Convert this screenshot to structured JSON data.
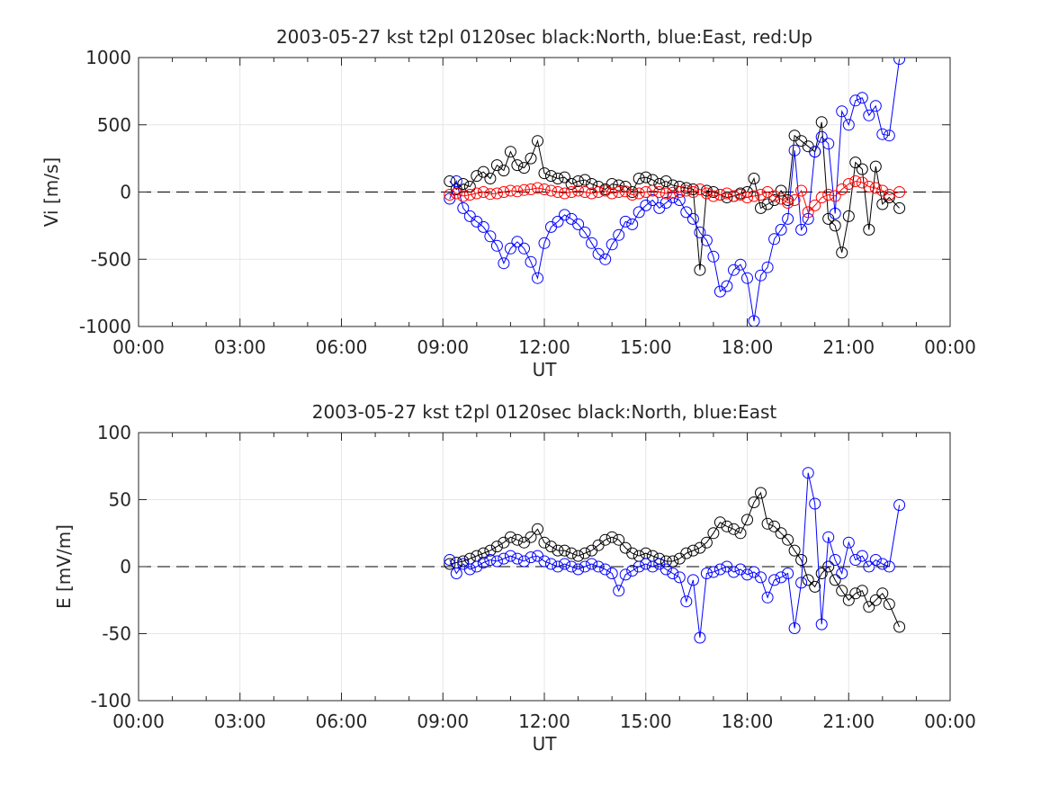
{
  "chart_data": [
    {
      "type": "scatter",
      "title": "2003-05-27 kst t2pl 0120sec black:North, blue:East, red:Up",
      "xlabel": "UT",
      "ylabel": "Vi [m/s]",
      "xlim": [
        0,
        24
      ],
      "ylim": [
        -1000,
        1000
      ],
      "x_ticks": [
        0,
        3,
        6,
        9,
        12,
        15,
        18,
        21,
        24
      ],
      "x_tick_labels": [
        "00:00",
        "03:00",
        "06:00",
        "09:00",
        "12:00",
        "15:00",
        "18:00",
        "21:00",
        "00:00"
      ],
      "y_ticks": [
        1000,
        500,
        0,
        -500,
        -1000
      ],
      "y_tick_labels": [
        "1000",
        "500",
        "0",
        "-500",
        "-1000"
      ],
      "grid": true,
      "zero_line": "dashed",
      "series": [
        {
          "name": "North",
          "color": "#000000",
          "marker": "circle",
          "x": [
            9.2,
            9.4,
            9.6,
            9.8,
            10.0,
            10.2,
            10.4,
            10.6,
            10.8,
            11.0,
            11.2,
            11.4,
            11.6,
            11.8,
            12.0,
            12.2,
            12.4,
            12.6,
            12.8,
            13.0,
            13.2,
            13.4,
            13.6,
            13.8,
            14.0,
            14.2,
            14.4,
            14.6,
            14.8,
            15.0,
            15.2,
            15.4,
            15.6,
            15.8,
            16.0,
            16.2,
            16.4,
            16.6,
            16.8,
            17.0,
            17.2,
            17.4,
            17.6,
            17.8,
            18.0,
            18.2,
            18.4,
            18.6,
            18.8,
            19.0,
            19.2,
            19.4,
            19.6,
            19.8,
            20.0,
            20.2,
            20.4,
            20.6,
            20.8,
            21.0,
            21.2,
            21.4,
            21.6,
            21.8,
            22.0,
            22.2,
            22.5
          ],
          "values": [
            80,
            20,
            60,
            40,
            120,
            150,
            100,
            200,
            160,
            300,
            200,
            180,
            250,
            380,
            140,
            120,
            100,
            110,
            60,
            80,
            90,
            60,
            40,
            20,
            60,
            50,
            40,
            0,
            100,
            110,
            90,
            60,
            80,
            50,
            40,
            30,
            20,
            -580,
            10,
            0,
            -20,
            -40,
            -30,
            -10,
            0,
            100,
            -120,
            -90,
            -60,
            10,
            -60,
            420,
            380,
            340,
            300,
            520,
            -200,
            -250,
            -450,
            -180,
            220,
            170,
            -280,
            190,
            -90,
            -40,
            -120
          ]
        },
        {
          "name": "East",
          "color": "#0000ff",
          "marker": "circle",
          "x": [
            9.2,
            9.4,
            9.6,
            9.8,
            10.0,
            10.2,
            10.4,
            10.6,
            10.8,
            11.0,
            11.2,
            11.4,
            11.6,
            11.8,
            12.0,
            12.2,
            12.4,
            12.6,
            12.8,
            13.0,
            13.2,
            13.4,
            13.6,
            13.8,
            14.0,
            14.2,
            14.4,
            14.6,
            14.8,
            15.0,
            15.2,
            15.4,
            15.6,
            15.8,
            16.0,
            16.2,
            16.4,
            16.6,
            16.8,
            17.0,
            17.2,
            17.4,
            17.6,
            17.8,
            18.0,
            18.2,
            18.4,
            18.6,
            18.8,
            19.0,
            19.2,
            19.4,
            19.6,
            19.8,
            20.0,
            20.2,
            20.4,
            20.6,
            20.8,
            21.0,
            21.2,
            21.4,
            21.6,
            21.8,
            22.0,
            22.2,
            22.5
          ],
          "values": [
            -50,
            80,
            -120,
            -180,
            -220,
            -260,
            -330,
            -400,
            -530,
            -420,
            -370,
            -420,
            -520,
            -640,
            -380,
            -260,
            -220,
            -170,
            -200,
            -240,
            -300,
            -380,
            -460,
            -500,
            -390,
            -320,
            -220,
            -240,
            -150,
            -100,
            -60,
            -120,
            -80,
            -40,
            -60,
            -150,
            -200,
            -300,
            -360,
            -480,
            -740,
            -700,
            -580,
            -540,
            -640,
            -960,
            -620,
            -560,
            -350,
            -280,
            -200,
            310,
            -280,
            -200,
            300,
            410,
            360,
            -160,
            600,
            500,
            680,
            700,
            570,
            640,
            430,
            420,
            990
          ]
        },
        {
          "name": "Up",
          "color": "#ff0000",
          "marker": "circle",
          "x": [
            9.2,
            9.4,
            9.6,
            9.8,
            10.0,
            10.2,
            10.4,
            10.6,
            10.8,
            11.0,
            11.2,
            11.4,
            11.6,
            11.8,
            12.0,
            12.2,
            12.4,
            12.6,
            12.8,
            13.0,
            13.2,
            13.4,
            13.6,
            13.8,
            14.0,
            14.2,
            14.4,
            14.6,
            14.8,
            15.0,
            15.2,
            15.4,
            15.6,
            15.8,
            16.0,
            16.2,
            16.4,
            16.6,
            16.8,
            17.0,
            17.2,
            17.4,
            17.6,
            17.8,
            18.0,
            18.2,
            18.4,
            18.6,
            18.8,
            19.0,
            19.2,
            19.4,
            19.6,
            19.8,
            20.0,
            20.2,
            20.4,
            20.6,
            20.8,
            21.0,
            21.2,
            21.4,
            21.6,
            21.8,
            22.0,
            22.2,
            22.5
          ],
          "values": [
            -20,
            -10,
            -30,
            -20,
            -10,
            0,
            -15,
            -10,
            0,
            10,
            5,
            15,
            20,
            30,
            20,
            10,
            0,
            -10,
            0,
            10,
            0,
            -10,
            0,
            10,
            -10,
            0,
            5,
            -20,
            -10,
            0,
            10,
            0,
            -10,
            -5,
            0,
            10,
            0,
            20,
            -10,
            -30,
            -20,
            -10,
            -30,
            -20,
            -40,
            -30,
            -20,
            0,
            -30,
            -50,
            -80,
            -60,
            10,
            -150,
            -100,
            -40,
            -20,
            -30,
            20,
            60,
            80,
            70,
            40,
            30,
            10,
            -20,
            0
          ]
        }
      ]
    },
    {
      "type": "scatter",
      "title": "2003-05-27 kst t2pl 0120sec black:North, blue:East",
      "xlabel": "UT",
      "ylabel": "E [mV/m]",
      "xlim": [
        0,
        24
      ],
      "ylim": [
        -100,
        100
      ],
      "x_ticks": [
        0,
        3,
        6,
        9,
        12,
        15,
        18,
        21,
        24
      ],
      "x_tick_labels": [
        "00:00",
        "03:00",
        "06:00",
        "09:00",
        "12:00",
        "15:00",
        "18:00",
        "21:00",
        "00:00"
      ],
      "y_ticks": [
        100,
        50,
        0,
        -50,
        -100
      ],
      "y_tick_labels": [
        "100",
        "50",
        "0",
        "-50",
        "-100"
      ],
      "grid": true,
      "zero_line": "dashed",
      "series": [
        {
          "name": "North",
          "color": "#000000",
          "marker": "circle",
          "x": [
            9.2,
            9.4,
            9.6,
            9.8,
            10.0,
            10.2,
            10.4,
            10.6,
            10.8,
            11.0,
            11.2,
            11.4,
            11.6,
            11.8,
            12.0,
            12.2,
            12.4,
            12.6,
            12.8,
            13.0,
            13.2,
            13.4,
            13.6,
            13.8,
            14.0,
            14.2,
            14.4,
            14.6,
            14.8,
            15.0,
            15.2,
            15.4,
            15.6,
            15.8,
            16.0,
            16.2,
            16.4,
            16.6,
            16.8,
            17.0,
            17.2,
            17.4,
            17.6,
            17.8,
            18.0,
            18.2,
            18.4,
            18.6,
            18.8,
            19.0,
            19.2,
            19.4,
            19.6,
            19.8,
            20.0,
            20.2,
            20.4,
            20.6,
            20.8,
            21.0,
            21.2,
            21.4,
            21.6,
            21.8,
            22.0,
            22.2,
            22.5
          ],
          "values": [
            2,
            3,
            4,
            6,
            8,
            10,
            12,
            15,
            18,
            22,
            20,
            18,
            22,
            28,
            18,
            15,
            12,
            12,
            10,
            8,
            10,
            12,
            16,
            20,
            22,
            20,
            14,
            10,
            8,
            10,
            8,
            6,
            4,
            4,
            6,
            10,
            12,
            14,
            18,
            25,
            33,
            30,
            28,
            25,
            35,
            48,
            55,
            32,
            30,
            25,
            20,
            12,
            5,
            -10,
            -15,
            -5,
            0,
            -10,
            -18,
            -25,
            -20,
            -18,
            -30,
            -25,
            -20,
            -28,
            -45
          ]
        },
        {
          "name": "East",
          "color": "#0000ff",
          "marker": "circle",
          "x": [
            9.2,
            9.4,
            9.6,
            9.8,
            10.0,
            10.2,
            10.4,
            10.6,
            10.8,
            11.0,
            11.2,
            11.4,
            11.6,
            11.8,
            12.0,
            12.2,
            12.4,
            12.6,
            12.8,
            13.0,
            13.2,
            13.4,
            13.6,
            13.8,
            14.0,
            14.2,
            14.4,
            14.6,
            14.8,
            15.0,
            15.2,
            15.4,
            15.6,
            15.8,
            16.0,
            16.2,
            16.4,
            16.6,
            16.8,
            17.0,
            17.2,
            17.4,
            17.6,
            17.8,
            18.0,
            18.2,
            18.4,
            18.6,
            18.8,
            19.0,
            19.2,
            19.4,
            19.6,
            19.8,
            20.0,
            20.2,
            20.4,
            20.6,
            20.8,
            21.0,
            21.2,
            21.4,
            21.6,
            21.8,
            22.0,
            22.2,
            22.5
          ],
          "values": [
            5,
            -5,
            2,
            -2,
            0,
            3,
            5,
            4,
            6,
            8,
            6,
            4,
            7,
            8,
            4,
            2,
            0,
            2,
            0,
            -2,
            0,
            2,
            0,
            -2,
            -5,
            -18,
            -6,
            -3,
            0,
            2,
            0,
            2,
            -2,
            -5,
            -8,
            -26,
            -10,
            -53,
            -5,
            -4,
            -2,
            0,
            -4,
            -2,
            -6,
            -4,
            -8,
            -23,
            -10,
            -8,
            -5,
            -46,
            -12,
            70,
            47,
            -43,
            22,
            5,
            -5,
            18,
            5,
            8,
            0,
            5,
            2,
            0,
            46
          ]
        }
      ]
    }
  ]
}
